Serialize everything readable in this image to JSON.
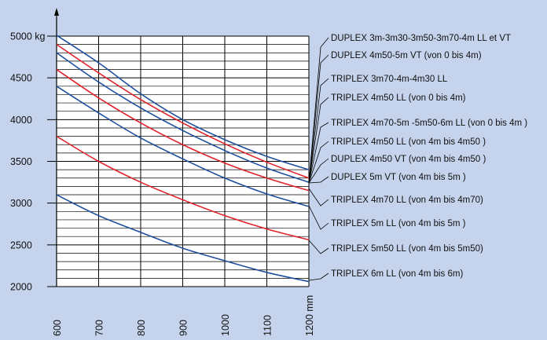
{
  "chart_data": {
    "type": "line",
    "title": "",
    "xlabel": "",
    "ylabel": "",
    "x_unit": "mm",
    "y_unit": "kg",
    "xlim": [
      600,
      1200
    ],
    "ylim": [
      2000,
      5000
    ],
    "grid": true,
    "legend_placement": "right",
    "x_ticks": [
      "600",
      "700",
      "800",
      "900",
      "1000",
      "1100",
      "1200 mm"
    ],
    "y_ticks": [
      "2000",
      "2500",
      "3000",
      "3500",
      "4000",
      "4500",
      "5000 kg"
    ],
    "colors": {
      "blue": "#1c4f9e",
      "red": "#e0222a"
    },
    "series": [
      {
        "color": "blue",
        "x": [
          600,
          700,
          800,
          900,
          1000,
          1100,
          1200
        ],
        "y": [
          5010,
          4680,
          4310,
          4000,
          3760,
          3560,
          3400
        ]
      },
      {
        "color": "red",
        "x": [
          600,
          700,
          800,
          900,
          1000,
          1100,
          1200
        ],
        "y": [
          4900,
          4560,
          4240,
          3960,
          3710,
          3490,
          3300
        ]
      },
      {
        "color": "blue",
        "x": [
          600,
          700,
          800,
          900,
          1000,
          1100,
          1200
        ],
        "y": [
          4800,
          4450,
          4140,
          3870,
          3630,
          3420,
          3250
        ]
      },
      {
        "color": "red",
        "x": [
          600,
          700,
          800,
          900,
          1000,
          1100,
          1200
        ],
        "y": [
          4600,
          4260,
          3960,
          3700,
          3480,
          3300,
          3150
        ]
      },
      {
        "color": "blue",
        "x": [
          600,
          700,
          800,
          900,
          1000,
          1100,
          1200
        ],
        "y": [
          4400,
          4080,
          3780,
          3530,
          3300,
          3110,
          2960
        ]
      },
      {
        "color": "red",
        "x": [
          600,
          700,
          800,
          900,
          1000,
          1100,
          1200
        ],
        "y": [
          3800,
          3500,
          3250,
          3040,
          2850,
          2690,
          2560
        ]
      },
      {
        "color": "blue",
        "x": [
          600,
          700,
          800,
          900,
          1000,
          1100,
          1200
        ],
        "y": [
          3100,
          2850,
          2650,
          2460,
          2310,
          2170,
          2060
        ]
      }
    ],
    "legend": [
      "DUPLEX 3m-3m30-3m50-3m70-4m LL et VT",
      "DUPLEX 4m50-5m VT (von 0 bis 4m)",
      "TRIPLEX 3m70-4m-4m30 LL",
      "TRIPLEX 4m50 LL (von 0 bis 4m)",
      "TRIPLEX 4m70-5m -5m50-6m LL (von 0 bis 4m )",
      "TRIPLEX 4m50 LL (von 4m bis 4m50 )",
      "DUPLEX 4m50 VT (von 4m bis 4m50 )",
      "DUPLEX 5m VT (von 4m bis 5m )",
      "TRIPLEX 4m70 LL (von 4m bis 4m70)",
      "TRIPLEX 5m LL (von 4m bis 5m )",
      "TRIPLEX 5m50 LL (von 4m bis 5m50)",
      "TRIPLEX 6m LL (von 4m bis 6m)"
    ]
  }
}
